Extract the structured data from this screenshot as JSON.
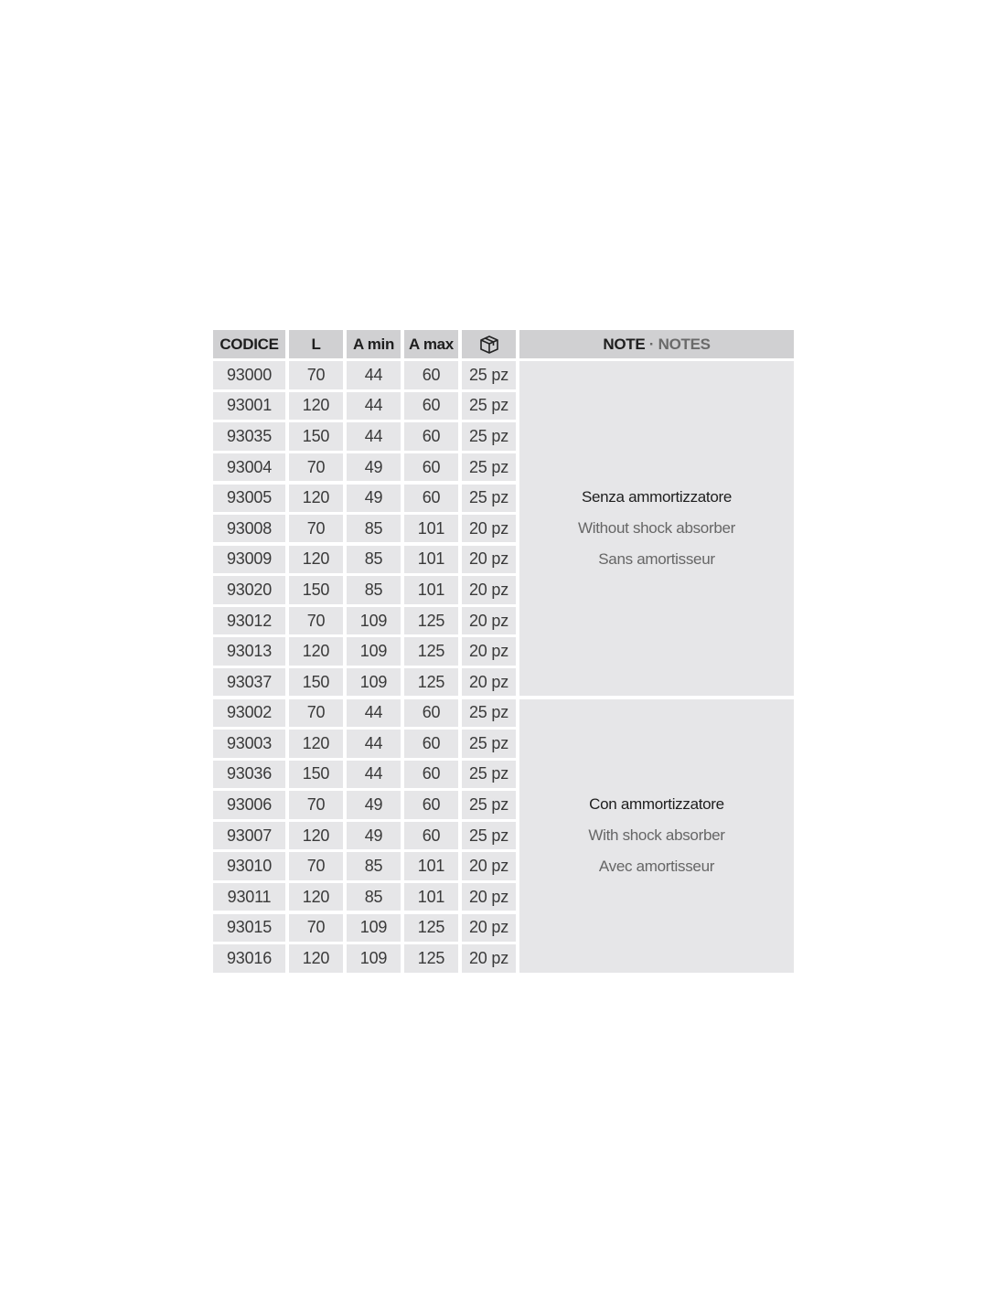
{
  "table": {
    "headers": {
      "code": "CODICE",
      "l": "L",
      "amin": "A min",
      "amax": "A max",
      "pack_icon": "box-icon",
      "note_it": "NOTE",
      "note_sep": " · ",
      "note_en": "NOTES"
    },
    "rows": [
      [
        "93000",
        "70",
        "44",
        "60",
        "25 pz"
      ],
      [
        "93001",
        "120",
        "44",
        "60",
        "25 pz"
      ],
      [
        "93035",
        "150",
        "44",
        "60",
        "25 pz"
      ],
      [
        "93004",
        "70",
        "49",
        "60",
        "25 pz"
      ],
      [
        "93005",
        "120",
        "49",
        "60",
        "25 pz"
      ],
      [
        "93008",
        "70",
        "85",
        "101",
        "20 pz"
      ],
      [
        "93009",
        "120",
        "85",
        "101",
        "20 pz"
      ],
      [
        "93020",
        "150",
        "85",
        "101",
        "20 pz"
      ],
      [
        "93012",
        "70",
        "109",
        "125",
        "20 pz"
      ],
      [
        "93013",
        "120",
        "109",
        "125",
        "20 pz"
      ],
      [
        "93037",
        "150",
        "109",
        "125",
        "20 pz"
      ],
      [
        "93002",
        "70",
        "44",
        "60",
        "25 pz"
      ],
      [
        "93003",
        "120",
        "44",
        "60",
        "25 pz"
      ],
      [
        "93036",
        "150",
        "44",
        "60",
        "25 pz"
      ],
      [
        "93006",
        "70",
        "49",
        "60",
        "25 pz"
      ],
      [
        "93007",
        "120",
        "49",
        "60",
        "25 pz"
      ],
      [
        "93010",
        "70",
        "85",
        "101",
        "20 pz"
      ],
      [
        "93011",
        "120",
        "85",
        "101",
        "20 pz"
      ],
      [
        "93015",
        "70",
        "109",
        "125",
        "20 pz"
      ],
      [
        "93016",
        "120",
        "109",
        "125",
        "20 pz"
      ]
    ],
    "notes": [
      {
        "it": "Senza ammortizzatore",
        "en": "Without shock absorber",
        "fr": "Sans amortisseur"
      },
      {
        "it": "Con ammortizzatore",
        "en": "With shock absorber",
        "fr": "Avec amortisseur"
      }
    ]
  },
  "colors": {
    "header_bg": "#d0d0d2",
    "cell_bg": "#e6e6e8"
  }
}
